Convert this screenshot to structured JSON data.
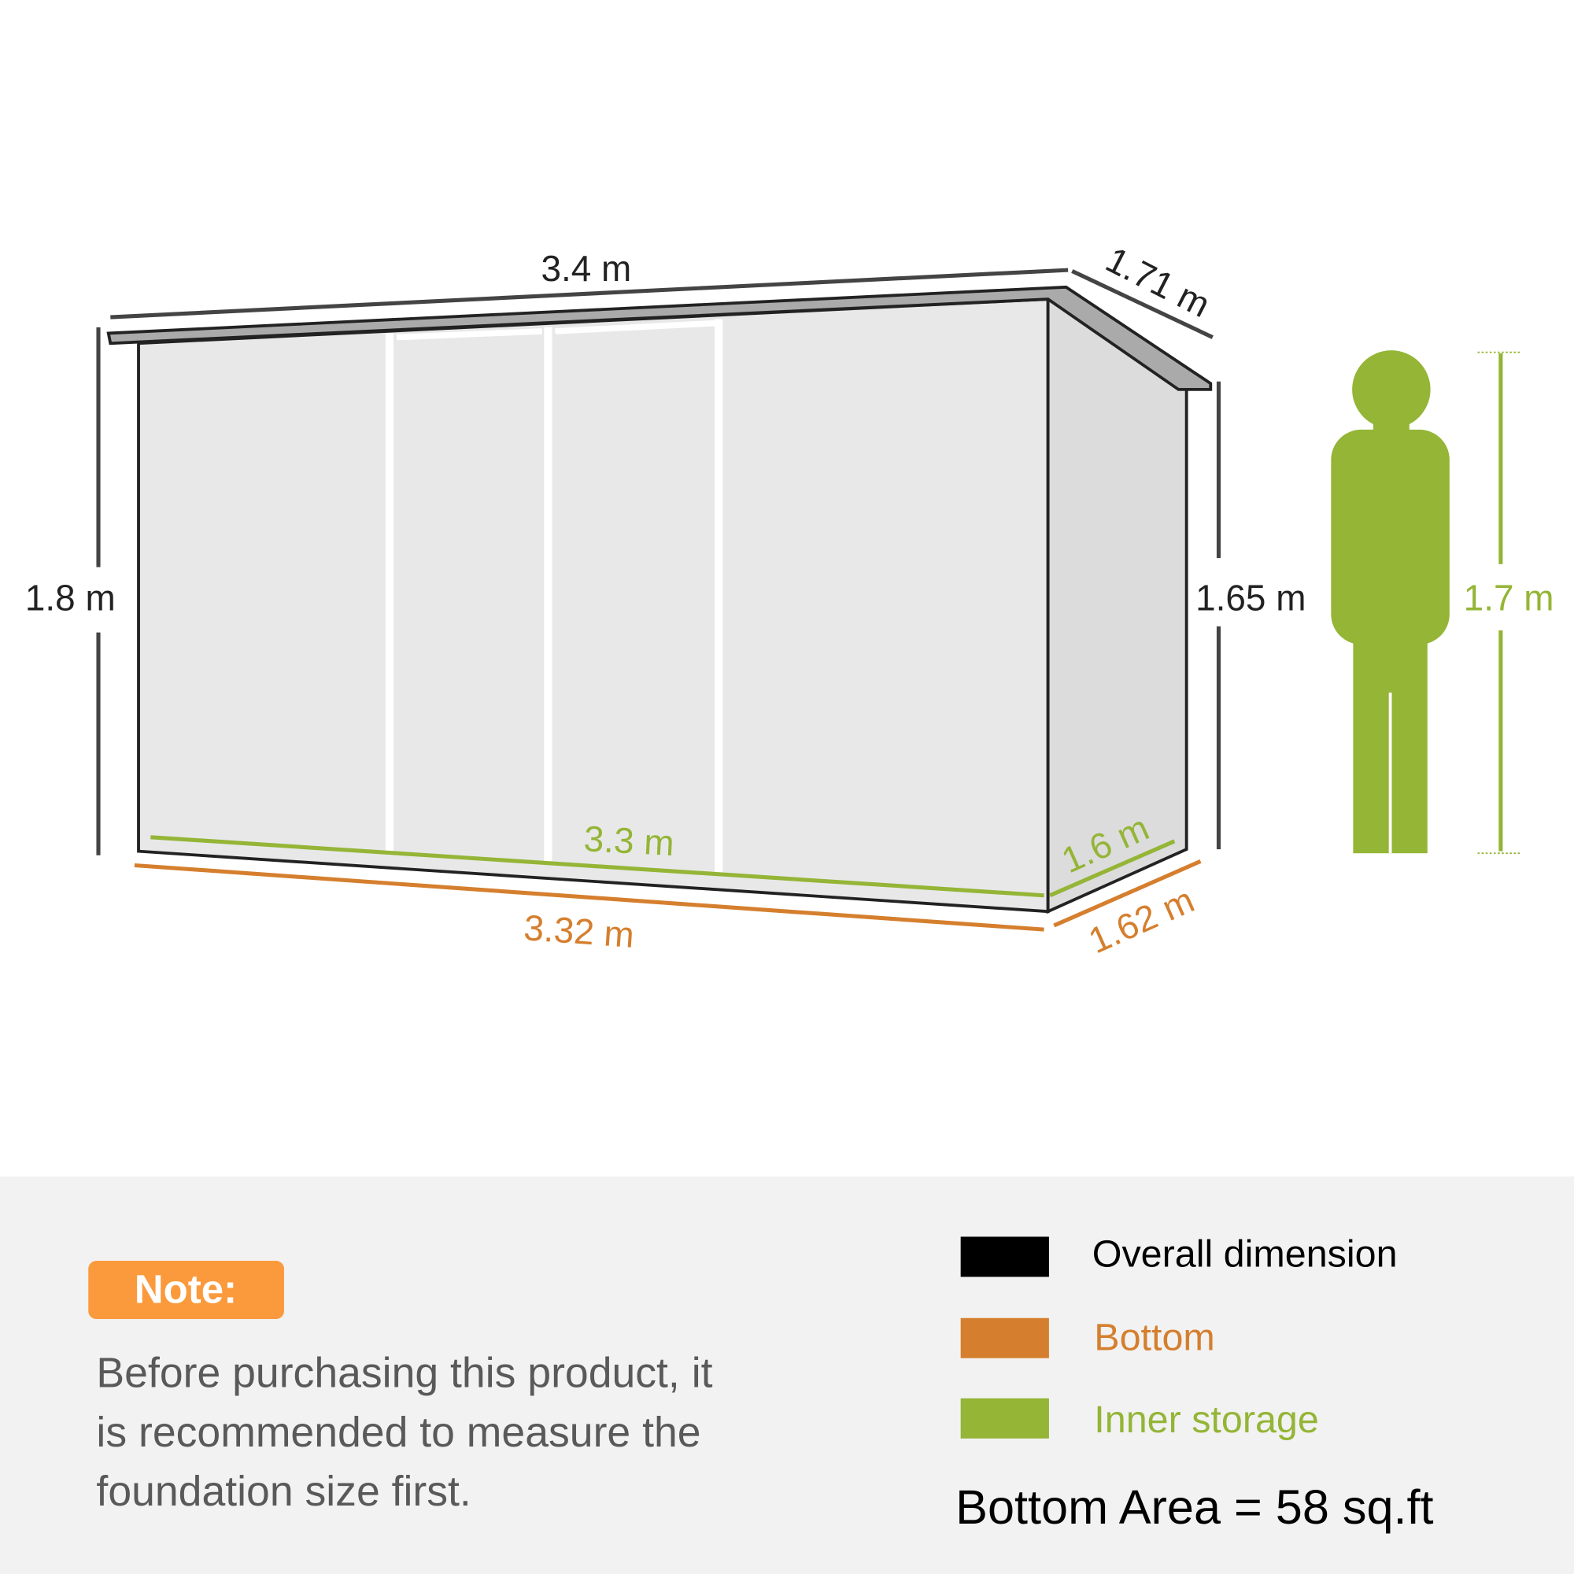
{
  "dimensions": {
    "overall_width": "3.4 m",
    "overall_depth": "1.71 m",
    "overall_height_front": "1.8 m",
    "overall_height_back": "1.65 m",
    "inner_width": "3.3 m",
    "inner_depth": "1.6 m",
    "bottom_width": "3.32 m",
    "bottom_depth": "1.62 m",
    "person_height": "1.7 m"
  },
  "note": {
    "badge": "Note:",
    "lines": [
      "Before purchasing this product, it",
      "is recommended to measure the",
      "foundation size first."
    ]
  },
  "legend": [
    {
      "label": "Overall dimension",
      "color": "#000000"
    },
    {
      "label": "Bottom",
      "color": "#d57f2e"
    },
    {
      "label": "Inner storage",
      "color": "#94b536"
    }
  ],
  "bottom_area": "Bottom Area = 58 sq.ft",
  "colors": {
    "overall": "#222222",
    "bottom": "#d57f2e",
    "inner": "#94b536",
    "note_badge": "#fb9a3d",
    "panel_bg": "#f2f2f2"
  }
}
